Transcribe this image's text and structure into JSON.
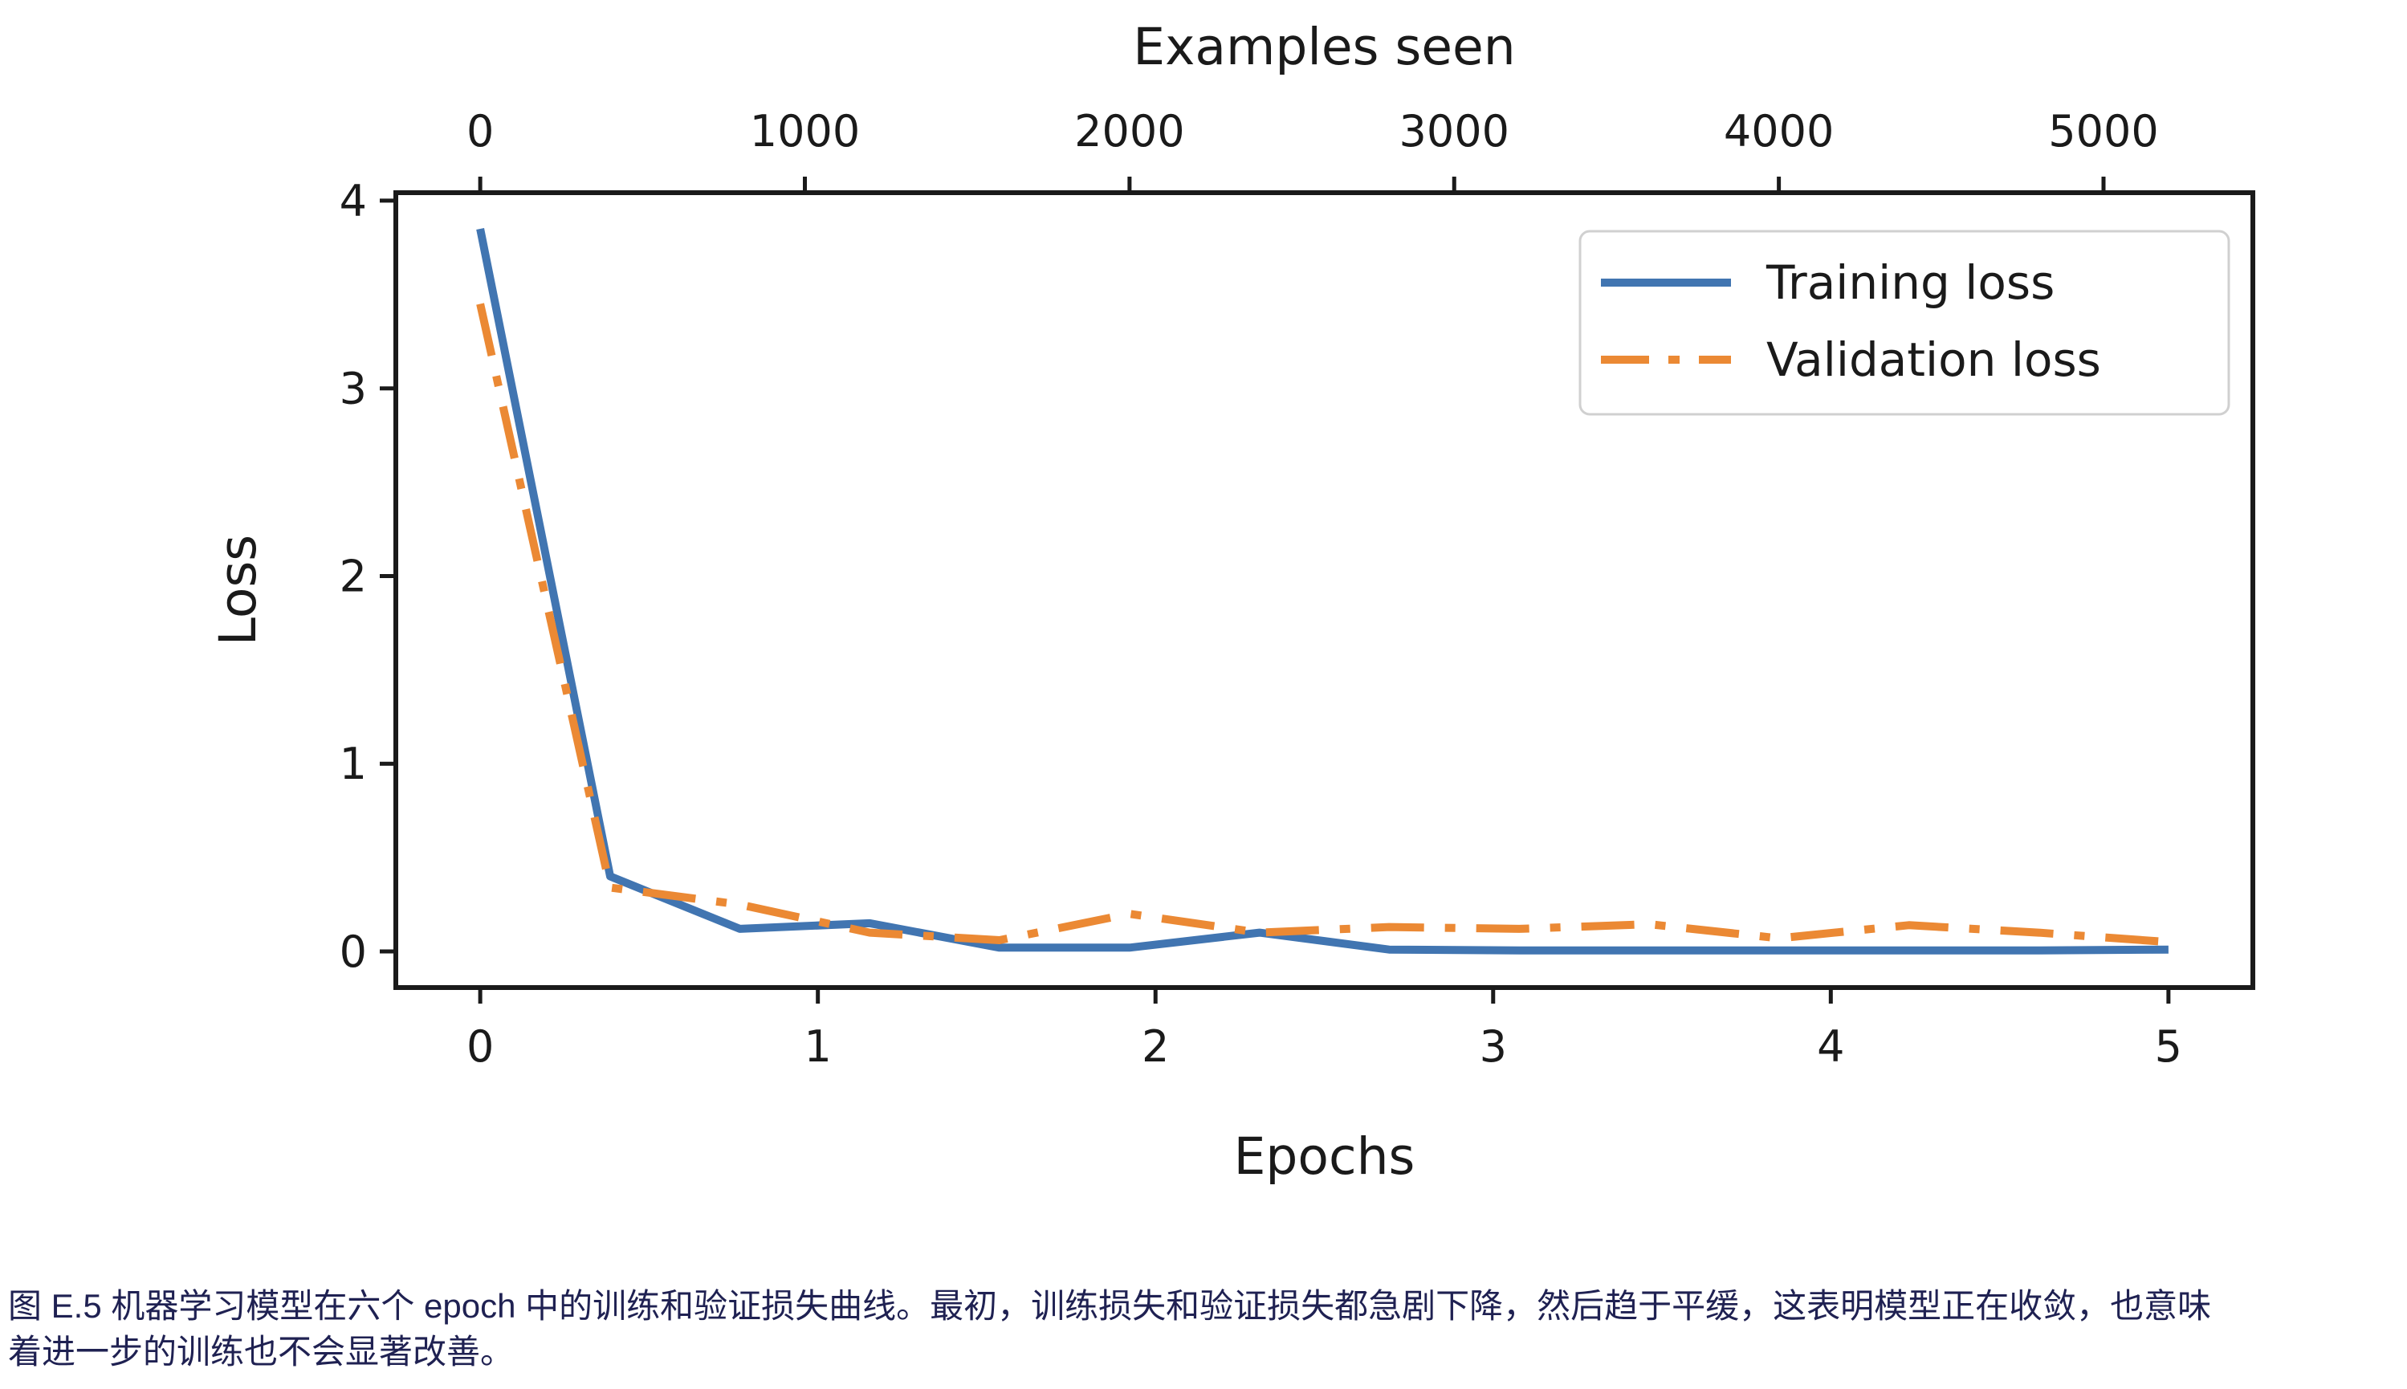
{
  "caption": {
    "color": "#1f2152",
    "full_text": "图 E.5 机器学习模型在六个 epoch 中的训练和验证损失曲线。最初，训练损失和验证损失都急剧下降，然后趋于平缓，这表明模型正在收敛，也意味着进一步的训练也不会显著改善。",
    "lines": [
      "图 E.5 机器学习模型在六个 epoch 中的训练和验证损失曲线。最初，训练损失和验证损失都急剧下降，然后趋于平缓，这表明模型正在收敛，也意味",
      "着进一步的训练也不会显著改善。"
    ]
  },
  "chart_data": {
    "type": "line",
    "title": "",
    "xlabel": "Epochs",
    "ylabel": "Loss",
    "top_xlabel": "Examples seen",
    "x_epochs": [
      0,
      0.385,
      0.769,
      1.154,
      1.538,
      1.923,
      2.308,
      2.692,
      3.077,
      3.462,
      3.846,
      4.231,
      4.615,
      5.0
    ],
    "examples_seen": [
      0,
      400,
      800,
      1200,
      1600,
      2000,
      2400,
      2800,
      3200,
      3600,
      4000,
      4400,
      4800,
      5200
    ],
    "series": [
      {
        "name": "Training loss",
        "color": "#4175B1",
        "style": "solid",
        "values": [
          3.85,
          0.4,
          0.12,
          0.15,
          0.02,
          0.02,
          0.1,
          0.01,
          0.005,
          0.005,
          0.005,
          0.005,
          0.005,
          0.01
        ]
      },
      {
        "name": "Validation loss",
        "color": "#EB8934",
        "style": "dashdot",
        "values": [
          3.45,
          0.34,
          0.25,
          0.1,
          0.06,
          0.2,
          0.1,
          0.13,
          0.12,
          0.145,
          0.07,
          0.14,
          0.1,
          0.05
        ]
      }
    ],
    "x_ticks": [
      0,
      1,
      2,
      3,
      4,
      5
    ],
    "y_ticks": [
      0,
      1,
      2,
      3,
      4
    ],
    "top_ticks": [
      0,
      1000,
      2000,
      3000,
      4000,
      5000
    ],
    "examples_per_epoch": 1040,
    "xlim": [
      -0.25,
      5.25
    ],
    "ylim": [
      -0.1925,
      4.0425
    ],
    "grid": false,
    "legend_position": "upper right",
    "axis_color": "#1a1a1a",
    "background": "#ffffff"
  }
}
